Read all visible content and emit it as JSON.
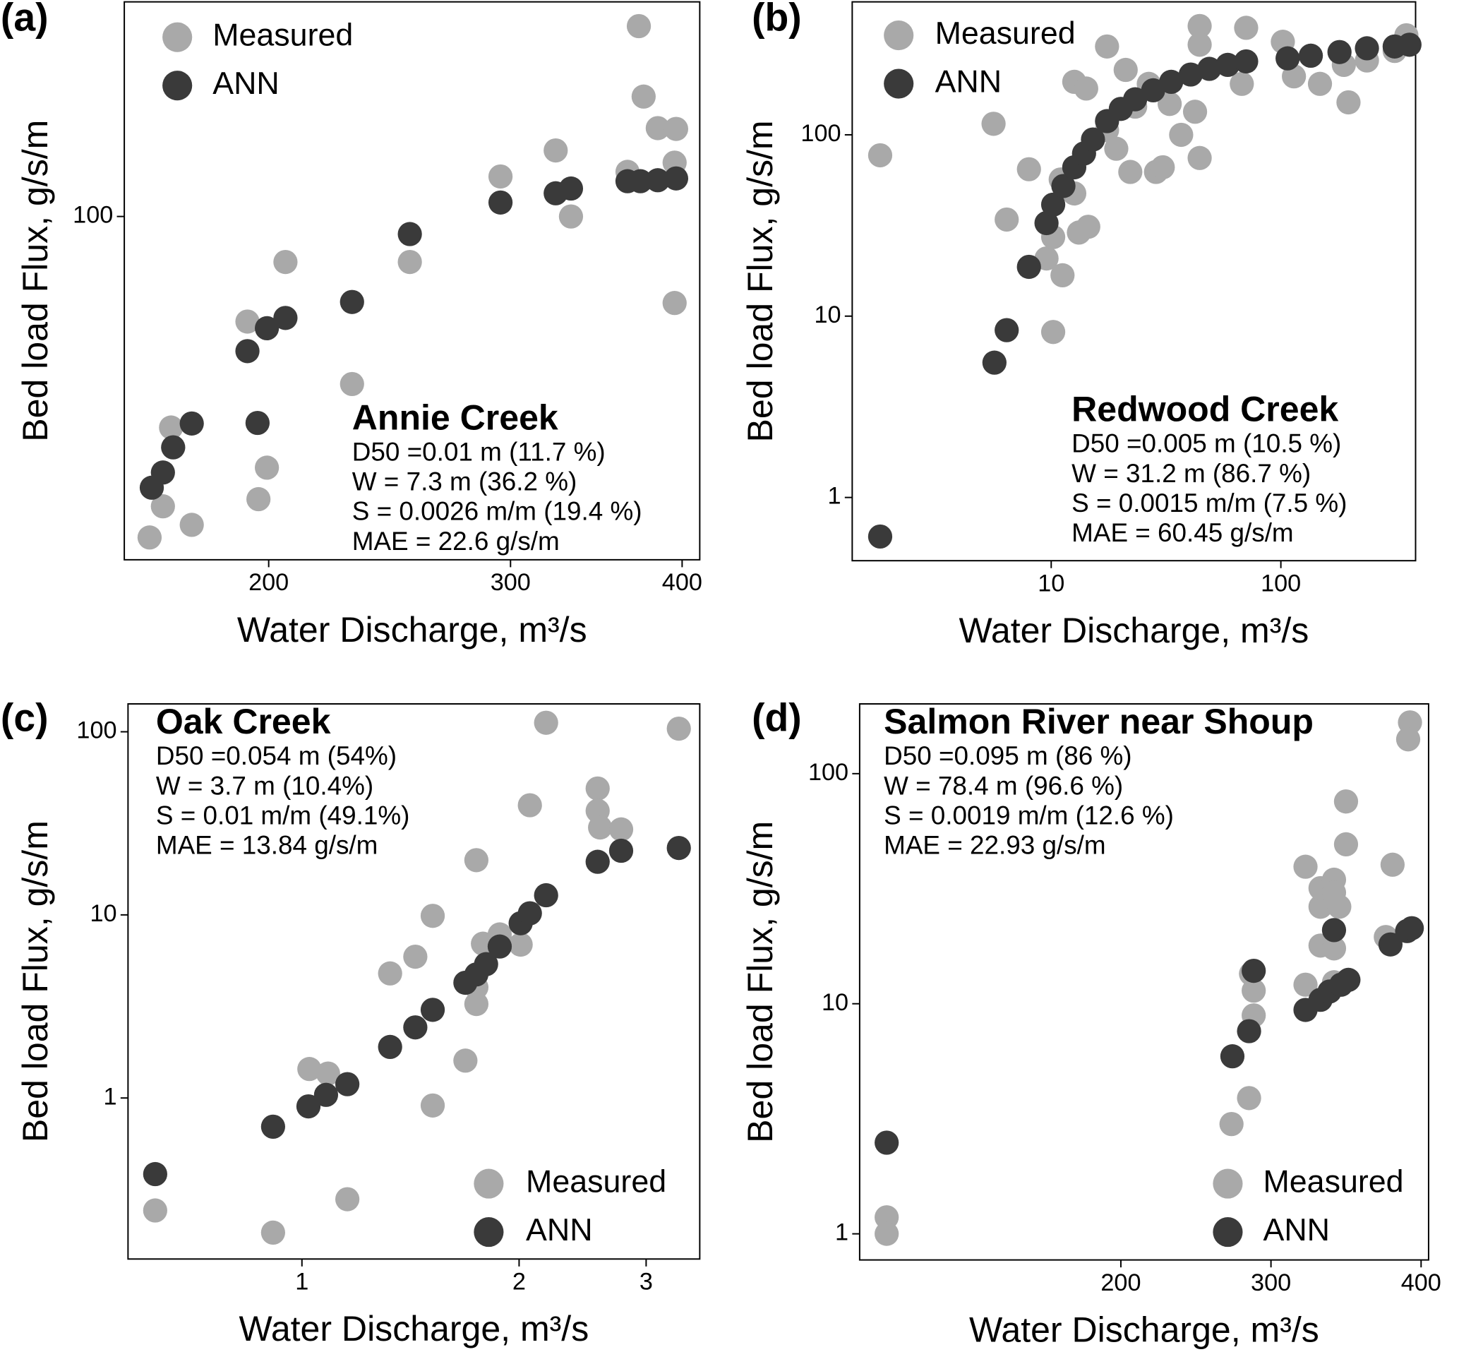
{
  "chart_data": [
    {
      "type": "scatter",
      "panel_label": "(a)",
      "title": "Annie Creek",
      "annotations": [
        "D50 =0.01 m (11.7 %)",
        "W = 7.3 m (36.2 %)",
        "S = 0.0026 m/m (19.4 %)",
        "MAE = 22.6 g/s/m"
      ],
      "x_label": "Water Discharge, m³/s",
      "y_label": "Bed load Flux, g/s/m",
      "xlog": true,
      "ylog": true,
      "legend": "upper left",
      "xlim": [
        157,
        412
      ],
      "ylim": [
        22.8,
        252
      ],
      "xticks": [
        200,
        300,
        400
      ],
      "yticks": [
        100
      ],
      "series": [
        {
          "name": "Measured",
          "color": "#a9a9a9",
          "x": [
            163.8,
            167.5,
            169.8,
            175.8,
            193,
            196.6,
            199.4,
            205.7,
            230,
            253.4,
            295,
            323.6,
            332,
            365,
            372,
            375,
            384,
            396,
            395,
            395
          ],
          "values": [
            25.1,
            28.7,
            40.3,
            26.5,
            63.6,
            29.6,
            33.9,
            82.2,
            48.6,
            82.2,
            118.8,
            132.9,
            100,
            121.2,
            227,
            167.6,
            146.3,
            145.8,
            126.1,
            68.9
          ]
        },
        {
          "name": "ANN",
          "color": "#3a3a3a",
          "x": [
            164.4,
            167.5,
            170.4,
            175.8,
            193,
            196.3,
            199.4,
            205.7,
            230,
            253.4,
            295,
            323.6,
            332,
            365,
            373,
            384,
            396
          ],
          "values": [
            31.1,
            33.2,
            37.0,
            41.0,
            56.0,
            41.1,
            61.8,
            64.6,
            69.2,
            92.7,
            106.2,
            110.5,
            112.8,
            116.4,
            116.4,
            116.9,
            117.8
          ]
        }
      ]
    },
    {
      "type": "scatter",
      "panel_label": "(b)",
      "title": "Redwood Creek",
      "annotations": [
        "D50 =0.005 m (10.5 %)",
        "W = 31.2 m (86.7 %)",
        "S = 0.0015 m/m (7.5 %)",
        "MAE = 60.45 g/s/m"
      ],
      "x_label": "Water Discharge, m³/s",
      "y_label": "Bed load Flux, g/s/m",
      "xlog": true,
      "ylog": true,
      "legend": "upper left",
      "xlim": [
        1.36,
        386
      ],
      "ylim": [
        0.448,
        541
      ],
      "xticks": [
        10,
        100
      ],
      "yticks": [
        1,
        10,
        100
      ],
      "series": [
        {
          "name": "Measured",
          "color": "#a9a9a9",
          "x": [
            1.8,
            5.61,
            6.4,
            8.0,
            10.2,
            9.54,
            10.2,
            11.2,
            11.0,
            12.6,
            13.2,
            14.5,
            12.6,
            14.2,
            17.5,
            17.5,
            21.1,
            19.2,
            22.1,
            26.6,
            28.6,
            23.2,
            30.6,
            36.8,
            44.3,
            44.3,
            44.3,
            42.3,
            32.8,
            70.6,
            67.6,
            102,
            114,
            135,
            148,
            188,
            197,
            237,
            352,
            313
          ],
          "values": [
            77.1,
            115,
            34.1,
            64.6,
            8.18,
            20.8,
            27.3,
            16.8,
            56.7,
            47.5,
            28.9,
            31.1,
            196,
            180,
            307,
            106,
            228,
            83.8,
            62.4,
            191,
            62.4,
            143,
            66.2,
            100,
            74.5,
            398,
            314,
            134,
            148,
            389,
            191,
            326,
            210,
            273,
            191,
            243,
            151,
            257,
            354,
            290
          ]
        },
        {
          "name": "ANN",
          "color": "#3a3a3a",
          "x": [
            1.8,
            5.66,
            6.4,
            8.0,
            9.54,
            10.2,
            11.3,
            12.6,
            13.9,
            15.2,
            17.5,
            20.1,
            23.2,
            27.8,
            33.3,
            40.5,
            48.8,
            58.7,
            70.6,
            107,
            135,
            180,
            237,
            313,
            363
          ],
          "values": [
            0.609,
            5.54,
            8.37,
            18.7,
            32.6,
            41.2,
            52.2,
            66.2,
            78.9,
            94.2,
            119,
            139,
            157,
            176,
            196,
            215,
            231,
            243,
            254,
            264,
            273,
            286,
            300,
            307,
            314
          ]
        }
      ]
    },
    {
      "type": "scatter",
      "panel_label": "(c)",
      "title": "Oak Creek",
      "annotations": [
        "D50 =0.054 m (54%)",
        "W = 3.7 m (10.4%)",
        "S = 0.01 m/m (49.1%)",
        "MAE = 13.84 g/s/m"
      ],
      "x_label": "Water Discharge, m³/s",
      "y_label": "Bed load Flux, g/s/m",
      "xlog": true,
      "ylog": true,
      "legend": "lower right",
      "xlim": [
        0.574,
        3.56
      ],
      "ylim": [
        0.132,
        142
      ],
      "xticks": [
        1,
        2,
        3
      ],
      "yticks": [
        1,
        10,
        100
      ],
      "series": [
        {
          "name": "Measured",
          "color": "#a9a9a9",
          "x": [
            0.626,
            0.912,
            1.024,
            1.087,
            1.156,
            1.325,
            1.436,
            1.518,
            1.518,
            1.685,
            1.745,
            1.745,
            1.782,
            1.745,
            1.88,
            2.01,
            2.07,
            2.18,
            2.57,
            2.57,
            2.59,
            2.77,
            3.33
          ],
          "values": [
            0.243,
            0.184,
            1.44,
            1.36,
            0.28,
            4.79,
            5.91,
            9.88,
            0.91,
            1.6,
            3.26,
            4.02,
            6.96,
            19.9,
            7.82,
            6.88,
            39.7,
            112,
            49.0,
            37.0,
            30.0,
            29.3,
            104
          ]
        },
        {
          "name": "ANN",
          "color": "#3a3a3a",
          "x": [
            0.626,
            0.912,
            1.021,
            1.08,
            1.156,
            1.325,
            1.436,
            1.518,
            1.685,
            1.745,
            1.8,
            1.88,
            2.01,
            2.07,
            2.18,
            2.57,
            2.77,
            3.33
          ],
          "values": [
            0.384,
            0.697,
            0.9,
            1.04,
            1.19,
            1.9,
            2.43,
            3.03,
            4.26,
            4.73,
            5.38,
            6.72,
            9.0,
            10.2,
            12.8,
            19.5,
            22.4,
            23.2
          ]
        }
      ]
    },
    {
      "type": "scatter",
      "panel_label": "(d)",
      "title": "Salmon River near Shoup",
      "annotations": [
        "D50 =0.095 m (86 %)",
        "W = 78.4 m (96.6 %)",
        "S = 0.0019 m/m (12.6 %)",
        "MAE = 22.93 g/s/m"
      ],
      "x_label": "Water Discharge, m³/s",
      "y_label": "Bed load Flux, g/s/m",
      "xlog": false,
      "ylog": true,
      "legend": "lower right",
      "xlim": [
        26,
        405
      ],
      "ylim": [
        0.77,
        201
      ],
      "xticks": [
        200,
        300,
        400
      ],
      "yticks": [
        1,
        10,
        100
      ],
      "series": [
        {
          "name": "Measured",
          "color": "#a9a9a9",
          "x": [
            44,
            44,
            273.7,
            285.4,
            286.7,
            288.5,
            288.5,
            323,
            323,
            333,
            333,
            333,
            342,
            342,
            342,
            345.5,
            350,
            350,
            342,
            381,
            376.5,
            392.6,
            391.4
          ],
          "values": [
            1.18,
            1.0,
            3.0,
            3.89,
            13.5,
            11.4,
            8.9,
            39.4,
            12.1,
            17.9,
            26.4,
            31.8,
            34.6,
            30.4,
            17.4,
            26.4,
            75.7,
            49.3,
            12.4,
            40.2,
            19.5,
            167,
            141
          ]
        },
        {
          "name": "ANN",
          "color": "#3a3a3a",
          "x": [
            44,
            274.3,
            285.4,
            288.5,
            323,
            333,
            339,
            346.7,
            351.6,
            342,
            379.6,
            390.7,
            393.8
          ],
          "values": [
            2.49,
            5.91,
            7.6,
            13.9,
            9.4,
            10.4,
            11.3,
            12.1,
            12.7,
            20.9,
            18.1,
            20.7,
            21.3
          ]
        }
      ]
    }
  ]
}
